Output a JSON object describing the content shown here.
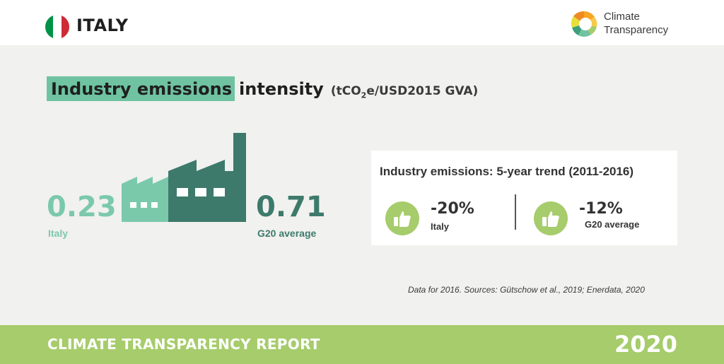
{
  "header": {
    "country": "ITALY",
    "flag_colors": [
      "#009246",
      "#ffffff",
      "#ce2b37"
    ],
    "logo_line1": "Climate",
    "logo_line2": "Transparency"
  },
  "indicator": {
    "title_highlight": "Industry emissions",
    "title_rest": "intensity",
    "unit_prefix": "(tCO",
    "unit_sub": "2",
    "unit_suffix": "e/USD2015 GVA)"
  },
  "values": {
    "italy_value": "0.23",
    "italy_label": "Italy",
    "g20_value": "0.71",
    "g20_label": "G20 average"
  },
  "trend": {
    "title": "Industry emissions: 5-year trend (2011-2016)",
    "italy_change": "-20%",
    "italy_label": "Italy",
    "g20_change": "-12%",
    "g20_label": "G20 average"
  },
  "source": "Data for 2016. Sources: Gütschow et al., 2019; Enerdata, 2020",
  "footer": {
    "title": "CLIMATE TRANSPARENCY REPORT",
    "year": "2020"
  },
  "colors": {
    "light_green": "#7bc9ab",
    "dark_green": "#3d7a6b",
    "lime": "#a6cc6b",
    "background": "#f1f1ef"
  },
  "icons": [
    "factory-icon",
    "thumbs-up-icon",
    "climate-transparency-logo"
  ]
}
